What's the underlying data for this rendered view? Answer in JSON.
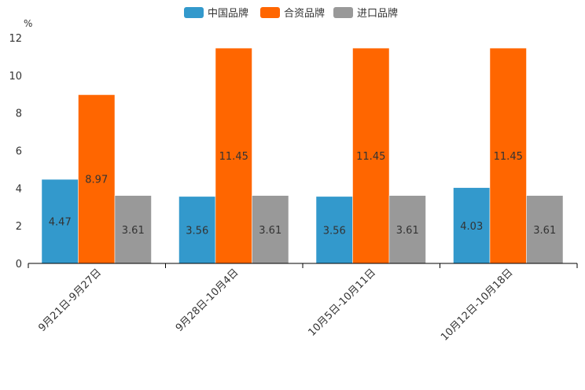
{
  "chart_data": {
    "type": "bar",
    "title": "",
    "ylabel": "%",
    "xlabel": "",
    "ylim": [
      0,
      12
    ],
    "yticks": [
      0,
      2,
      4,
      6,
      8,
      10,
      12
    ],
    "yticks_text": [
      "0",
      "2",
      "4",
      "6",
      "8",
      "10",
      "12"
    ],
    "categories": [
      "9月21日-9月27日",
      "9月28日-10月4日",
      "10月5日-10月11日",
      "10月12日-10月18日"
    ],
    "series": [
      {
        "name": "中国品牌",
        "color": "#3399cc",
        "values": [
          4.47,
          3.56,
          3.56,
          4.03
        ],
        "labels": [
          "4.47",
          "3.56",
          "3.56",
          "4.03"
        ]
      },
      {
        "name": "合资品牌",
        "color": "#ff6600",
        "values": [
          8.97,
          11.45,
          11.45,
          11.45
        ],
        "labels": [
          "8.97",
          "11.45",
          "11.45",
          "11.45"
        ]
      },
      {
        "name": "进口品牌",
        "color": "#999999",
        "values": [
          3.61,
          3.61,
          3.61,
          3.61
        ],
        "labels": [
          "3.61",
          "3.61",
          "3.61",
          "3.61"
        ]
      }
    ],
    "legend_position": "top-center"
  }
}
